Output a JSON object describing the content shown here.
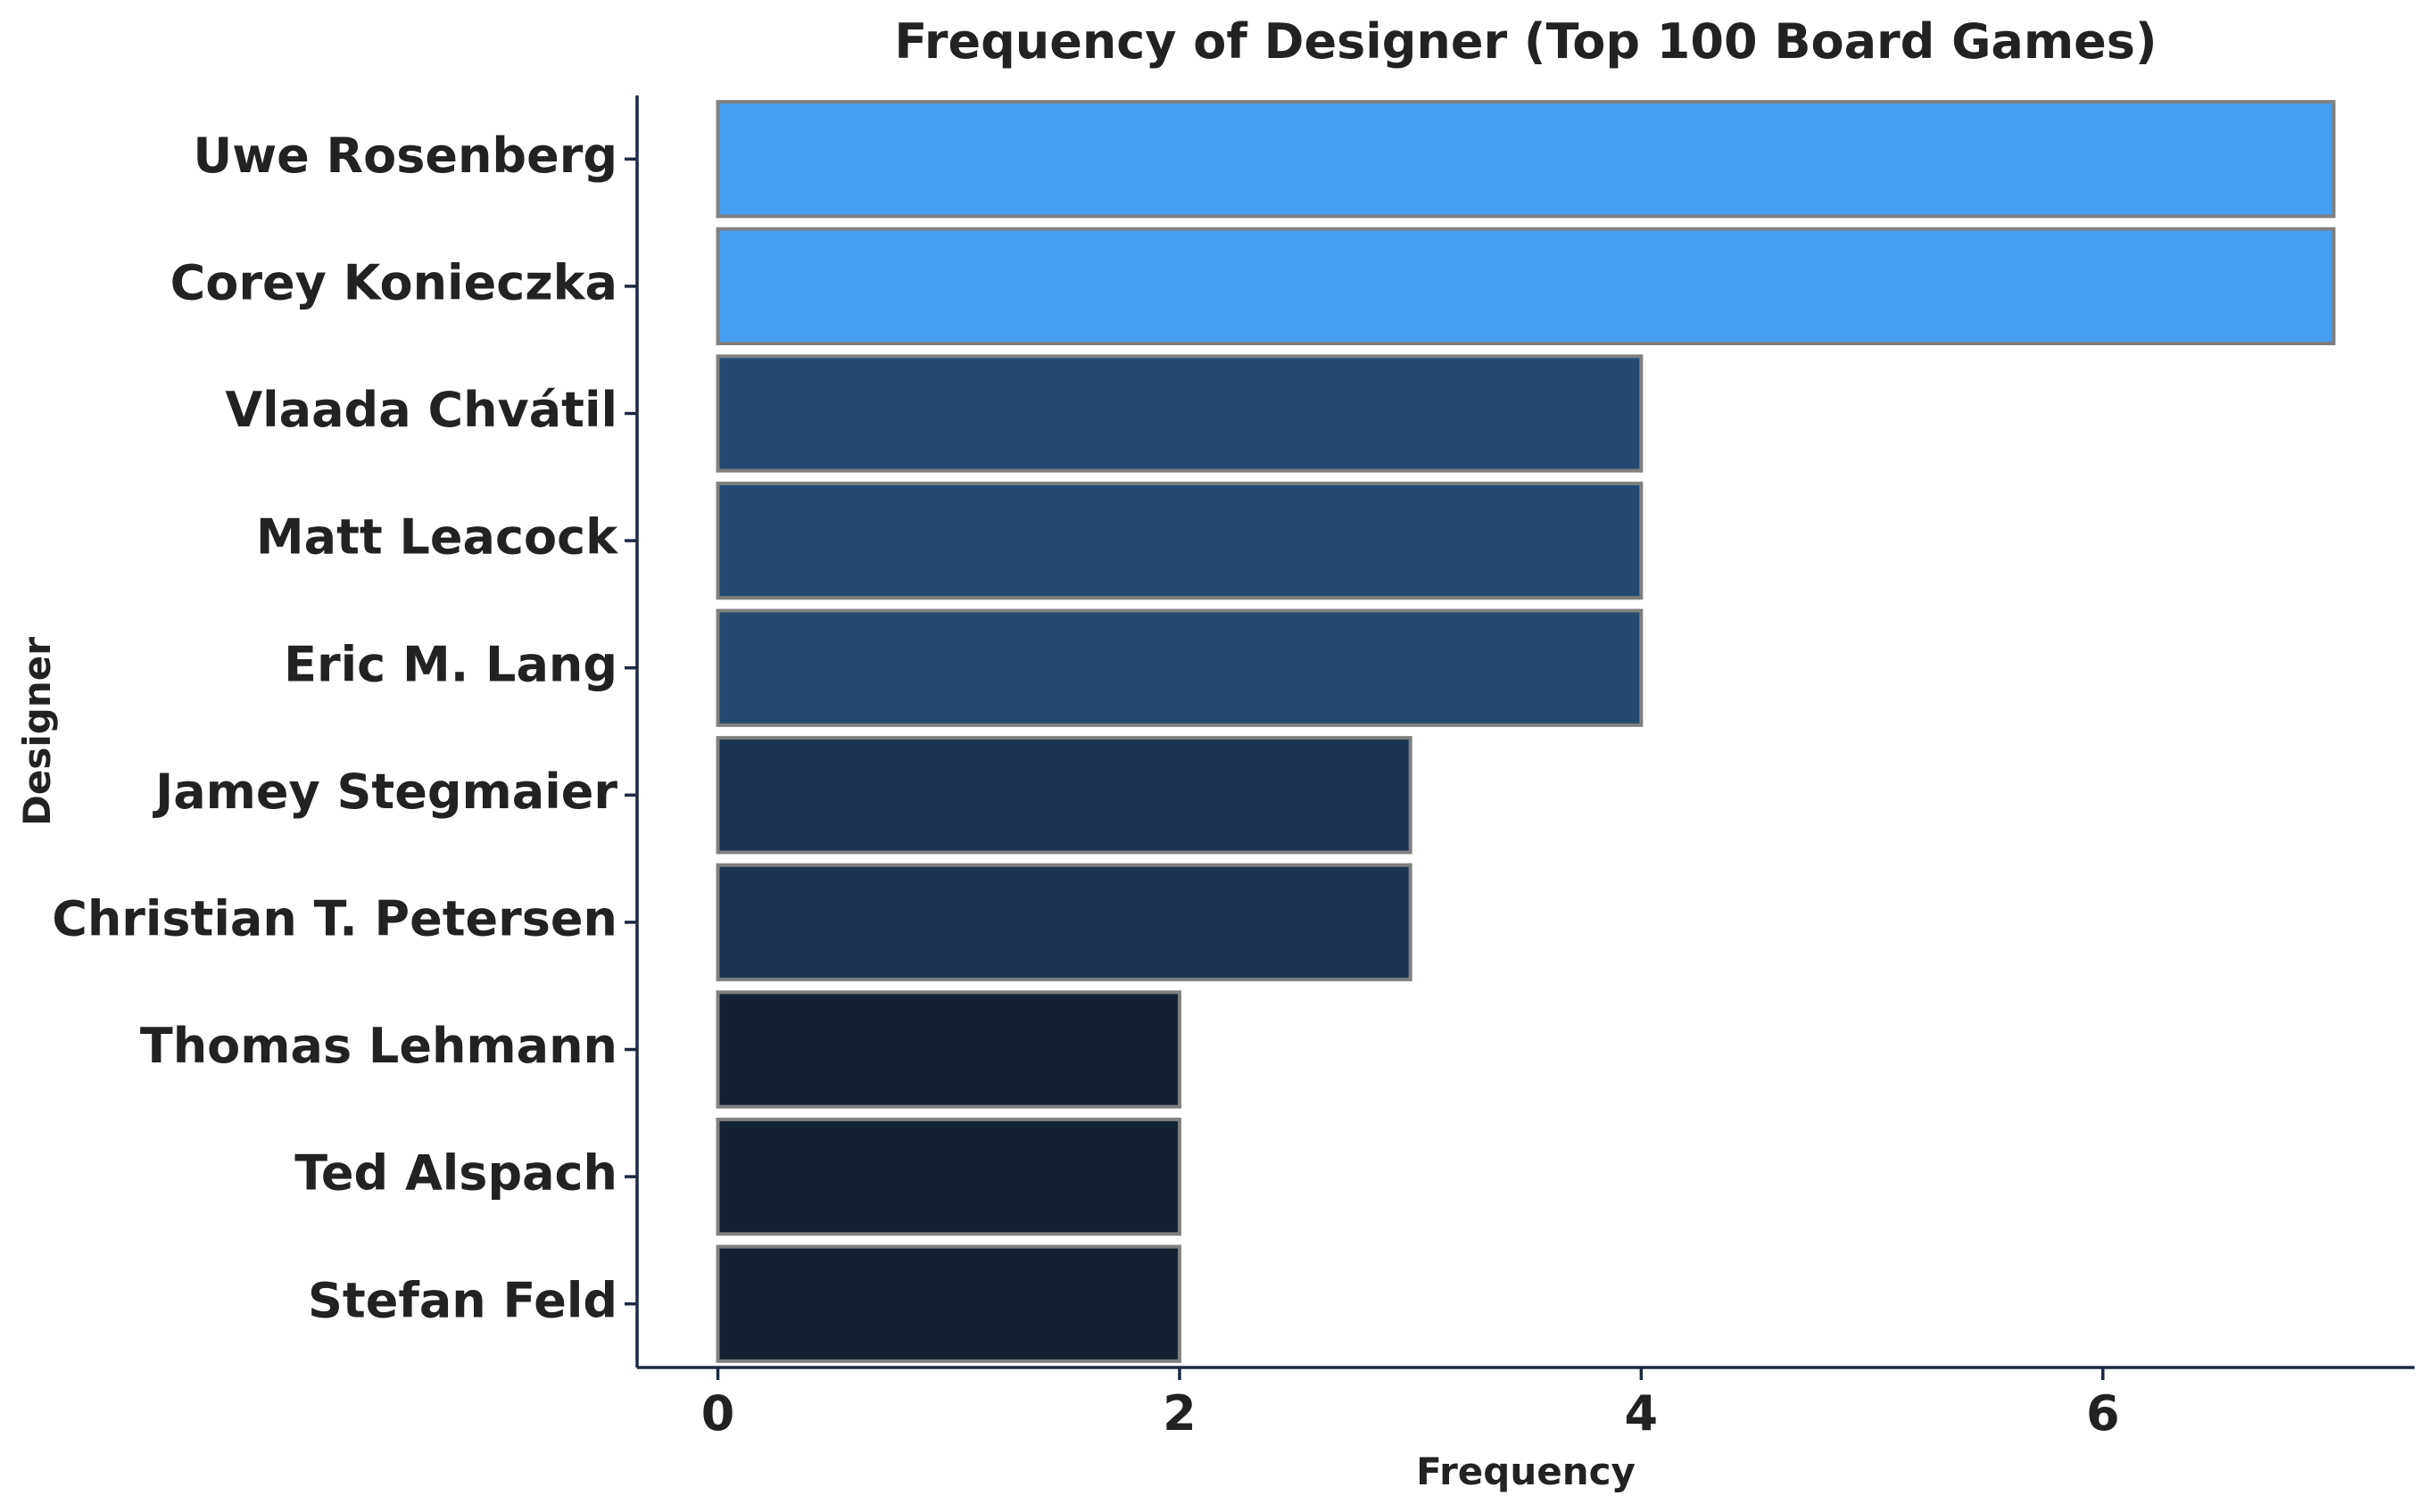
{
  "chart_data": {
    "type": "bar",
    "orientation": "horizontal",
    "title": "Frequency of Designer (Top 100 Board Games)",
    "xlabel": "Frequency",
    "ylabel": "Designer",
    "categories": [
      "Uwe Rosenberg",
      "Corey Konieczka",
      "Vlaada Chvátil",
      "Matt Leacock",
      "Eric M. Lang",
      "Jamey Stegmaier",
      "Christian T. Petersen",
      "Thomas Lehmann",
      "Ted Alspach",
      "Stefan Feld"
    ],
    "values": [
      7,
      7,
      4,
      4,
      4,
      3,
      3,
      2,
      2,
      2
    ],
    "xlim": [
      -0.35,
      7.35
    ],
    "xticks": [
      0,
      2,
      4,
      6
    ],
    "grid": false,
    "legend": "none",
    "colors": {
      "7": "#479ff5",
      "4": "#244a72",
      "3": "#1b3452",
      "2": "#132134"
    },
    "bar_edge_color": "#808080",
    "axis_color": "#1c2a44"
  }
}
